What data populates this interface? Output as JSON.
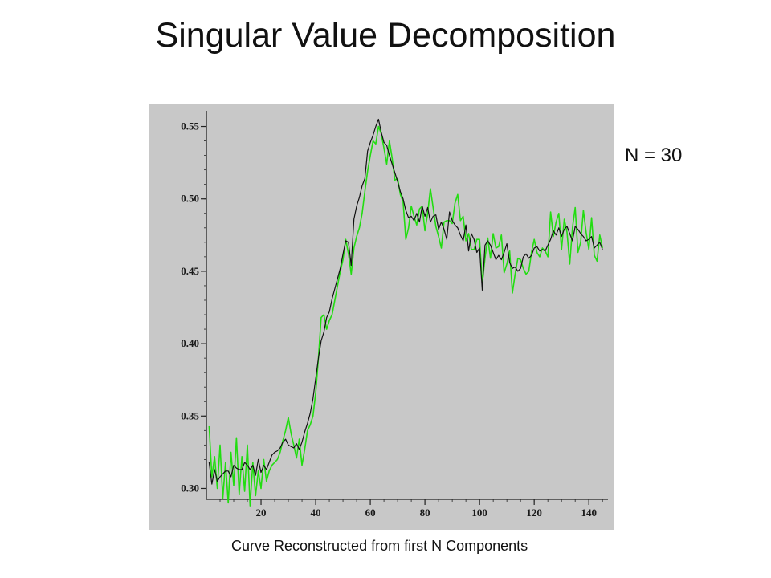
{
  "slide": {
    "title": "Singular Value Decomposition",
    "annotation": "N = 30",
    "caption": "Curve Reconstructed from first N Components"
  },
  "chart_data": {
    "type": "line",
    "title": "",
    "xlabel": "",
    "ylabel": "",
    "xlim": [
      0,
      147
    ],
    "ylim": [
      0.2925,
      0.5575
    ],
    "x_ticks": [
      20,
      40,
      60,
      80,
      100,
      120,
      140
    ],
    "y_ticks": [
      0.3,
      0.35,
      0.4,
      0.45,
      0.5,
      0.55
    ],
    "x_tick_labels": [
      "20",
      "40",
      "60",
      "80",
      "100",
      "120",
      "140"
    ],
    "y_tick_labels": [
      "0.30",
      "0.35",
      "0.40",
      "0.45",
      "0.50",
      "0.55"
    ],
    "grid": false,
    "legend": "none",
    "colors": {
      "background": "#c8c8c8",
      "axes": "#222222",
      "original": "#22dd11",
      "reconstructed": "#111111"
    },
    "series": [
      {
        "color": "#22dd11",
        "x": [
          1,
          2,
          3,
          4,
          5,
          6,
          7,
          8,
          9,
          10,
          11,
          12,
          13,
          14,
          15,
          16,
          17,
          18,
          19,
          20,
          21,
          22,
          23,
          24,
          25,
          26,
          27,
          28,
          29,
          30,
          31,
          32,
          33,
          34,
          35,
          36,
          37,
          38,
          39,
          40,
          41,
          42,
          43,
          44,
          45,
          46,
          47,
          48,
          49,
          50,
          51,
          52,
          53,
          54,
          55,
          56,
          57,
          58,
          59,
          60,
          61,
          62,
          63,
          64,
          65,
          66,
          67,
          68,
          69,
          70,
          71,
          72,
          73,
          74,
          75,
          76,
          77,
          78,
          79,
          80,
          81,
          82,
          83,
          84,
          85,
          86,
          87,
          88,
          89,
          90,
          91,
          92,
          93,
          94,
          95,
          96,
          97,
          98,
          99,
          100,
          101,
          102,
          103,
          104,
          105,
          106,
          107,
          108,
          109,
          110,
          111,
          112,
          113,
          114,
          115,
          116,
          117,
          118,
          119,
          120,
          121,
          122,
          123,
          124,
          125,
          126,
          127,
          128,
          129,
          130,
          131,
          132,
          133,
          134,
          135,
          136,
          137,
          138,
          139,
          140,
          141,
          142,
          143,
          144,
          145
        ],
        "values": [
          0.343,
          0.308,
          0.322,
          0.3,
          0.33,
          0.293,
          0.318,
          0.29,
          0.325,
          0.302,
          0.335,
          0.296,
          0.322,
          0.298,
          0.33,
          0.288,
          0.318,
          0.295,
          0.312,
          0.3,
          0.32,
          0.305,
          0.312,
          0.316,
          0.318,
          0.32,
          0.325,
          0.333,
          0.34,
          0.349,
          0.338,
          0.33,
          0.321,
          0.334,
          0.316,
          0.327,
          0.34,
          0.344,
          0.35,
          0.366,
          0.39,
          0.418,
          0.42,
          0.41,
          0.416,
          0.42,
          0.43,
          0.44,
          0.45,
          0.458,
          0.472,
          0.462,
          0.448,
          0.466,
          0.474,
          0.48,
          0.49,
          0.505,
          0.519,
          0.53,
          0.54,
          0.538,
          0.55,
          0.545,
          0.535,
          0.524,
          0.54,
          0.528,
          0.513,
          0.514,
          0.503,
          0.498,
          0.472,
          0.48,
          0.495,
          0.488,
          0.482,
          0.493,
          0.495,
          0.478,
          0.49,
          0.507,
          0.494,
          0.481,
          0.474,
          0.466,
          0.484,
          0.485,
          0.485,
          0.483,
          0.497,
          0.503,
          0.485,
          0.488,
          0.471,
          0.476,
          0.465,
          0.465,
          0.472,
          0.472,
          0.442,
          0.459,
          0.473,
          0.459,
          0.476,
          0.466,
          0.467,
          0.475,
          0.449,
          0.455,
          0.464,
          0.435,
          0.448,
          0.459,
          0.458,
          0.452,
          0.448,
          0.45,
          0.463,
          0.472,
          0.463,
          0.46,
          0.466,
          0.464,
          0.46,
          0.491,
          0.474,
          0.484,
          0.49,
          0.465,
          0.486,
          0.477,
          0.455,
          0.48,
          0.494,
          0.463,
          0.47,
          0.492,
          0.477,
          0.465,
          0.487,
          0.461,
          0.457,
          0.475,
          0.466
        ]
      },
      {
        "color": "#111111",
        "x": [
          1,
          2,
          3,
          4,
          5,
          6,
          7,
          8,
          9,
          10,
          11,
          12,
          13,
          14,
          15,
          16,
          17,
          18,
          19,
          20,
          21,
          22,
          23,
          24,
          25,
          26,
          27,
          28,
          29,
          30,
          31,
          32,
          33,
          34,
          35,
          36,
          37,
          38,
          39,
          40,
          41,
          42,
          43,
          44,
          45,
          46,
          47,
          48,
          49,
          50,
          51,
          52,
          53,
          54,
          55,
          56,
          57,
          58,
          59,
          60,
          61,
          62,
          63,
          64,
          65,
          66,
          67,
          68,
          69,
          70,
          71,
          72,
          73,
          74,
          75,
          76,
          77,
          78,
          79,
          80,
          81,
          82,
          83,
          84,
          85,
          86,
          87,
          88,
          89,
          90,
          91,
          92,
          93,
          94,
          95,
          96,
          97,
          98,
          99,
          100,
          101,
          102,
          103,
          104,
          105,
          106,
          107,
          108,
          109,
          110,
          111,
          112,
          113,
          114,
          115,
          116,
          117,
          118,
          119,
          120,
          121,
          122,
          123,
          124,
          125,
          126,
          127,
          128,
          129,
          130,
          131,
          132,
          133,
          134,
          135,
          136,
          137,
          138,
          139,
          140,
          141,
          142,
          143,
          144,
          145
        ],
        "values": [
          0.318,
          0.303,
          0.313,
          0.305,
          0.308,
          0.31,
          0.312,
          0.312,
          0.308,
          0.316,
          0.314,
          0.313,
          0.313,
          0.318,
          0.316,
          0.313,
          0.316,
          0.309,
          0.32,
          0.311,
          0.316,
          0.313,
          0.318,
          0.323,
          0.325,
          0.326,
          0.328,
          0.332,
          0.334,
          0.33,
          0.329,
          0.328,
          0.331,
          0.327,
          0.332,
          0.339,
          0.345,
          0.352,
          0.362,
          0.376,
          0.39,
          0.402,
          0.408,
          0.418,
          0.422,
          0.431,
          0.438,
          0.445,
          0.452,
          0.462,
          0.471,
          0.47,
          0.454,
          0.486,
          0.495,
          0.501,
          0.509,
          0.514,
          0.533,
          0.539,
          0.544,
          0.55,
          0.555,
          0.546,
          0.539,
          0.537,
          0.53,
          0.524,
          0.518,
          0.512,
          0.505,
          0.5,
          0.492,
          0.487,
          0.488,
          0.485,
          0.49,
          0.484,
          0.495,
          0.488,
          0.494,
          0.484,
          0.488,
          0.489,
          0.479,
          0.484,
          0.479,
          0.472,
          0.491,
          0.485,
          0.482,
          0.48,
          0.475,
          0.471,
          0.482,
          0.464,
          0.476,
          0.472,
          0.463,
          0.466,
          0.437,
          0.468,
          0.471,
          0.468,
          0.463,
          0.458,
          0.461,
          0.458,
          0.463,
          0.469,
          0.456,
          0.452,
          0.453,
          0.45,
          0.452,
          0.46,
          0.462,
          0.459,
          0.461,
          0.466,
          0.467,
          0.464,
          0.465,
          0.464,
          0.468,
          0.472,
          0.478,
          0.475,
          0.48,
          0.474,
          0.479,
          0.481,
          0.476,
          0.471,
          0.481,
          0.479,
          0.476,
          0.474,
          0.471,
          0.472,
          0.474,
          0.466,
          0.468,
          0.47,
          0.465
        ]
      }
    ]
  }
}
